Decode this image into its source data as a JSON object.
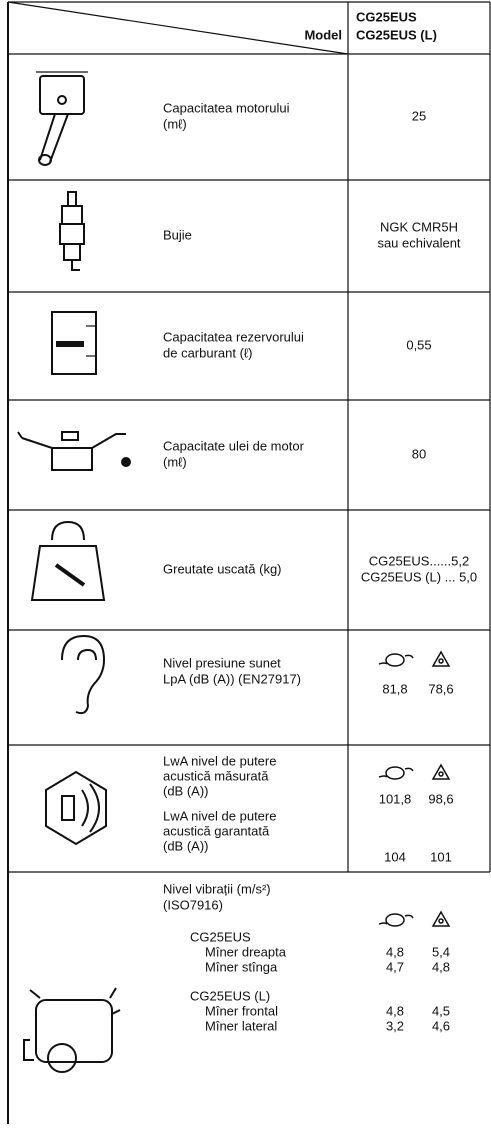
{
  "header": {
    "model_label": "Model",
    "model_values": [
      "CG25EUS",
      "CG25EUS (L)"
    ]
  },
  "rows": [
    {
      "label": [
        "Capacitatea motorului",
        "(mℓ)"
      ],
      "value": [
        "25"
      ]
    },
    {
      "label": [
        "Bujie"
      ],
      "value": [
        "NGK CMR5H",
        "sau echivalent"
      ]
    },
    {
      "label": [
        "Capacitatea rezervorului",
        "de carburant (ℓ)"
      ],
      "value": [
        "0,55"
      ]
    },
    {
      "label": [
        "Capacitate ulei de motor",
        "(mℓ)"
      ],
      "value": [
        "80"
      ]
    },
    {
      "label": [
        "Greutate uscată (kg)"
      ],
      "value": [
        "CG25EUS......5,2",
        "CG25EUS (L) ... 5,0"
      ]
    },
    {
      "label": [
        "Nivel presiune sunet",
        "LpA (dB (A)) (EN27917)"
      ],
      "pair": [
        "81,8",
        "78,6"
      ]
    },
    {
      "sections": [
        {
          "label": [
            "LwA nivel de putere",
            "acustică măsurată",
            "(dB (A))"
          ],
          "pair": [
            "101,8",
            "98,6"
          ]
        },
        {
          "label": [
            "LwA nivel de putere",
            "acustică garantată",
            "(dB (A))"
          ],
          "pair": [
            "104",
            "101"
          ]
        }
      ]
    },
    {
      "label": [
        "Nivel vibrații (m/s²)",
        "(ISO7916)"
      ],
      "groups": [
        {
          "model": "CG25EUS",
          "items": [
            {
              "name": "Mîner dreapta",
              "pair": [
                "4,8",
                "5,4"
              ]
            },
            {
              "name": "Mîner stînga",
              "pair": [
                "4,7",
                "4,8"
              ]
            }
          ]
        },
        {
          "model": "CG25EUS (L)",
          "items": [
            {
              "name": "Mîner frontal",
              "pair": [
                "4,8",
                "4,5"
              ]
            },
            {
              "name": "Mîner lateral",
              "pair": [
                "3,2",
                "4,6"
              ]
            }
          ]
        }
      ]
    }
  ]
}
